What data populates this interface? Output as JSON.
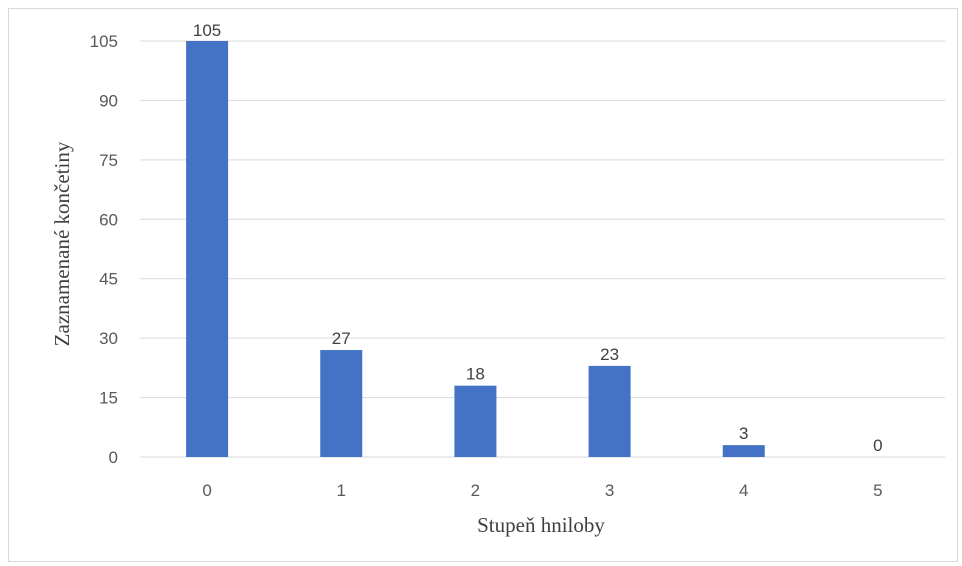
{
  "chart_data": {
    "type": "bar",
    "categories": [
      "0",
      "1",
      "2",
      "3",
      "4",
      "5"
    ],
    "values": [
      105,
      27,
      18,
      23,
      3,
      0
    ],
    "xlabel": "Stupeň hniloby",
    "ylabel": "Zaznamenané končetiny",
    "ylim": [
      0,
      105
    ],
    "yticks": [
      0,
      15,
      30,
      45,
      60,
      75,
      90,
      105
    ],
    "grid": true,
    "legend": "none",
    "bar_color": "#4472c4",
    "grid_color": "#d9d9d9",
    "data_labels": true
  }
}
